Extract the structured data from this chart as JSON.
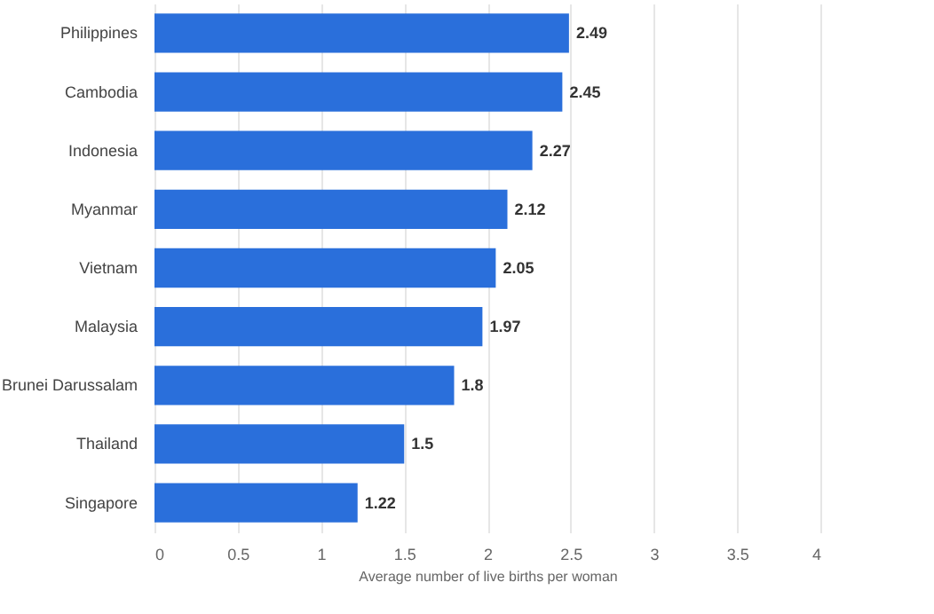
{
  "chart_data": {
    "type": "bar",
    "orientation": "horizontal",
    "xlabel": "Average number of live births per woman",
    "categories": [
      "Philippines",
      "Cambodia",
      "Indonesia",
      "Myanmar",
      "Vietnam",
      "Malaysia",
      "Brunei Darussalam",
      "Thailand",
      "Singapore"
    ],
    "values": [
      2.49,
      2.45,
      2.27,
      2.12,
      2.05,
      1.97,
      1.8,
      1.5,
      1.22
    ],
    "color": "#2a6fdb",
    "data_labels": true,
    "xlim": [
      0,
      4
    ],
    "xticks": [
      0,
      0.5,
      1,
      1.5,
      2,
      2.5,
      3,
      3.5,
      4
    ],
    "grid": "x"
  }
}
